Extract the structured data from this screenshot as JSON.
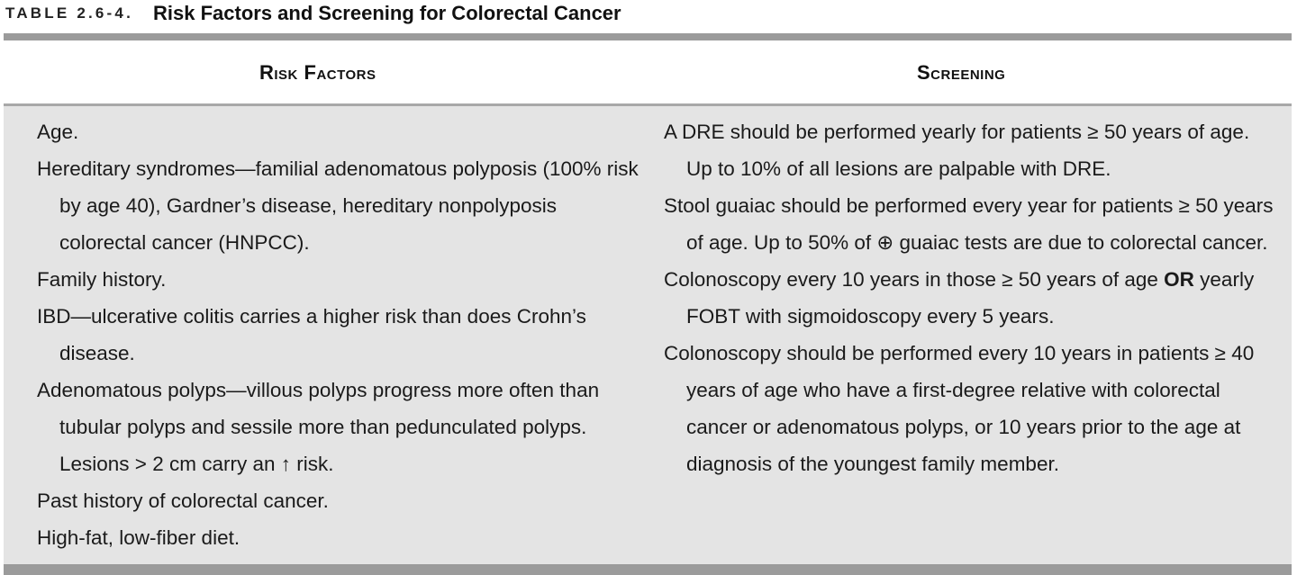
{
  "caption": {
    "label": "TABLE 2.6-4.",
    "title": "Risk Factors and Screening for Colorectal Cancer"
  },
  "columns": {
    "risk_factors": "Risk Factors",
    "screening": "Screening"
  },
  "risk_factors": [
    "Age.",
    "Hereditary syndromes—familial adenomatous polyposis (100% risk by age 40), Gardner’s disease, hereditary nonpolyposis colorectal cancer (HNPCC).",
    "Family history.",
    "IBD—ulcerative colitis carries a higher risk than does Crohn’s disease.",
    "Adenomatous polyps—villous polyps progress more often than tubular polyps and sessile more than pedunculated polyps. Lesions > 2 cm carry an ↑ risk.",
    "Past history of colorectal cancer.",
    "High-fat, low-fiber diet."
  ],
  "screening": {
    "dre": "A DRE should be performed yearly for patients ≥ 50 years of age. Up to 10% of all lesions are palpable with DRE.",
    "stool_guaiac": "Stool guaiac should be performed every year for patients ≥ 50 years of age. Up to 50% of ⊕ guaiac tests are due to colorectal cancer.",
    "colonoscopy_general_before": "Colonoscopy every 10 years in those ≥ 50 years of age ",
    "colonoscopy_general_or": "OR",
    "colonoscopy_general_after": " yearly FOBT with sigmoidoscopy every 5 years.",
    "colonoscopy_family": "Colonoscopy should be performed every 10 years in patients ≥ 40 years of age who have a first-degree relative with colorectal cancer or adenomatous polyps, or 10 years prior to the age at diagnosis of the youngest family member."
  }
}
